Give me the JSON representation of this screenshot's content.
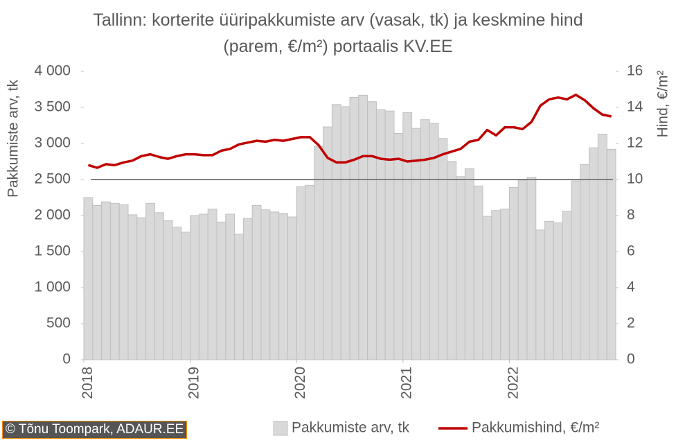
{
  "chart_data": {
    "type": "bar_line",
    "title": "Tallinn: korterite üüripakkumiste arv (vasak, tk) ja keskmine hind (parem, €/m²) portaalis KV.EE",
    "ylabel": "Pakkumiste arv, tk",
    "y2label": "Hind, €/m²",
    "source": "© Tõnu Toompark, ADAUR.EE",
    "categories": [
      "2018",
      null,
      null,
      null,
      null,
      null,
      null,
      null,
      null,
      null,
      null,
      null,
      "2019",
      null,
      null,
      null,
      null,
      null,
      null,
      null,
      null,
      null,
      null,
      null,
      "2020",
      null,
      null,
      null,
      null,
      null,
      null,
      null,
      null,
      null,
      null,
      null,
      "2021",
      null,
      null,
      null,
      null,
      null,
      null,
      null,
      null,
      null,
      null,
      null,
      "2022",
      null,
      null,
      null,
      null,
      null,
      null,
      null,
      null,
      null,
      null,
      null
    ],
    "series": [
      {
        "name": "Pakkumiste arv, tk",
        "type": "bar",
        "color": "#d9d9d9",
        "values": [
          2250,
          2140,
          2190,
          2170,
          2150,
          2010,
          1970,
          2170,
          2040,
          1930,
          1840,
          1770,
          2000,
          2020,
          2090,
          1910,
          2020,
          1740,
          1960,
          2140,
          2080,
          2050,
          2030,
          1980,
          2400,
          2420,
          2960,
          3230,
          3540,
          3510,
          3640,
          3670,
          3580,
          3470,
          3450,
          3140,
          3430,
          3210,
          3330,
          3280,
          3070,
          2750,
          2540,
          2650,
          2410,
          1990,
          2070,
          2090,
          2390,
          2490,
          2530,
          1800,
          1920,
          1900,
          2060,
          2480,
          2710,
          2940,
          3130,
          2920
        ]
      },
      {
        "name": "Pakkumishind, €/m²",
        "type": "line",
        "axis": "y2",
        "color": "#c00000",
        "values": [
          10.8,
          10.65,
          10.85,
          10.8,
          10.95,
          11.05,
          11.3,
          11.4,
          11.25,
          11.15,
          11.3,
          11.4,
          11.4,
          11.35,
          11.35,
          11.6,
          11.7,
          11.95,
          12.05,
          12.15,
          12.1,
          12.2,
          12.15,
          12.25,
          12.35,
          12.35,
          11.9,
          11.2,
          10.95,
          10.95,
          11.1,
          11.3,
          11.3,
          11.15,
          11.1,
          11.15,
          11.0,
          11.05,
          11.1,
          11.2,
          11.4,
          11.55,
          11.7,
          12.1,
          12.2,
          12.75,
          12.45,
          12.9,
          12.9,
          12.8,
          13.2,
          14.1,
          14.45,
          14.55,
          14.45,
          14.7,
          14.4,
          13.95,
          13.6,
          13.5
        ]
      }
    ],
    "reference_line": {
      "value": 2500,
      "color": "#7f7f7f"
    },
    "ylim": [
      0,
      4000
    ],
    "yticks": [
      0,
      500,
      {
        "value": 1000,
        "label": "1 000"
      },
      {
        "value": 1500,
        "label": "1 500"
      },
      {
        "value": 2000,
        "label": "2 000"
      },
      {
        "value": 2500,
        "label": "2 500"
      },
      {
        "value": 3000,
        "label": "3 000"
      },
      {
        "value": 3500,
        "label": "3 500"
      },
      {
        "value": 4000,
        "label": "4 000"
      }
    ],
    "y2lim": [
      0,
      16
    ],
    "y2ticks": [
      0,
      2,
      4,
      6,
      8,
      10,
      12,
      14,
      16
    ],
    "grid": false
  }
}
